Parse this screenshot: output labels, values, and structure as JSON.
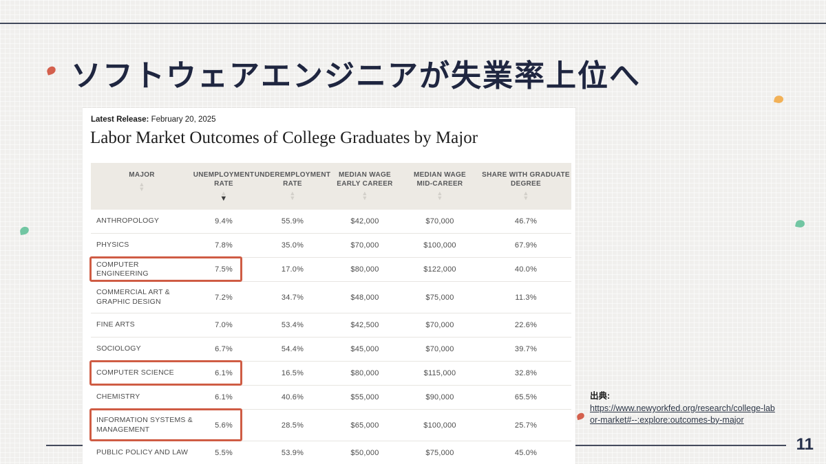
{
  "slide": {
    "title": "ソフトウェアエンジニアが失業率上位へ",
    "page_number": "11"
  },
  "report": {
    "release_label": "Latest Release:",
    "release_date": "February 20, 2025",
    "title": "Labor Market Outcomes of College Graduates by Major"
  },
  "table": {
    "columns": [
      {
        "label": "MAJOR",
        "sorted": "none"
      },
      {
        "label": "UNEMPLOYMENT\nRATE",
        "sorted": "desc"
      },
      {
        "label": "UNDEREMPLOYMENT\nRATE",
        "sorted": "none"
      },
      {
        "label": "MEDIAN WAGE\nEARLY CAREER",
        "sorted": "none"
      },
      {
        "label": "MEDIAN WAGE\nMID-CAREER",
        "sorted": "none"
      },
      {
        "label": "SHARE WITH GRADUATE\nDEGREE",
        "sorted": "none"
      }
    ],
    "rows": [
      {
        "major": "ANTHROPOLOGY",
        "values": [
          "9.4%",
          "55.9%",
          "$42,000",
          "$70,000",
          "46.7%"
        ],
        "highlighted": false
      },
      {
        "major": "PHYSICS",
        "values": [
          "7.8%",
          "35.0%",
          "$70,000",
          "$100,000",
          "67.9%"
        ],
        "highlighted": false
      },
      {
        "major": "COMPUTER ENGINEERING",
        "values": [
          "7.5%",
          "17.0%",
          "$80,000",
          "$122,000",
          "40.0%"
        ],
        "highlighted": true
      },
      {
        "major": "COMMERCIAL ART &\nGRAPHIC DESIGN",
        "values": [
          "7.2%",
          "34.7%",
          "$48,000",
          "$75,000",
          "11.3%"
        ],
        "highlighted": false
      },
      {
        "major": "FINE ARTS",
        "values": [
          "7.0%",
          "53.4%",
          "$42,500",
          "$70,000",
          "22.6%"
        ],
        "highlighted": false
      },
      {
        "major": "SOCIOLOGY",
        "values": [
          "6.7%",
          "54.4%",
          "$45,000",
          "$70,000",
          "39.7%"
        ],
        "highlighted": false
      },
      {
        "major": "COMPUTER SCIENCE",
        "values": [
          "6.1%",
          "16.5%",
          "$80,000",
          "$115,000",
          "32.8%"
        ],
        "highlighted": true
      },
      {
        "major": "CHEMISTRY",
        "values": [
          "6.1%",
          "40.6%",
          "$55,000",
          "$90,000",
          "65.5%"
        ],
        "highlighted": false
      },
      {
        "major": "INFORMATION SYSTEMS &\nMANAGEMENT",
        "values": [
          "5.6%",
          "28.5%",
          "$65,000",
          "$100,000",
          "25.7%"
        ],
        "highlighted": true
      },
      {
        "major": "PUBLIC POLICY AND LAW",
        "values": [
          "5.5%",
          "53.9%",
          "$50,000",
          "$75,000",
          "45.0%"
        ],
        "highlighted": false
      }
    ]
  },
  "source": {
    "label": "出典:",
    "url_line1": "https://www.newyorkfed.org/research/college-lab",
    "url_line2": "or-market#--:explore:outcomes-by-major"
  },
  "colors": {
    "highlight_box": "#cf5c44",
    "title_text": "#1f2640",
    "rule_line": "#434a5c",
    "leaf_red": "#d4604d",
    "leaf_yellow": "#f2b157",
    "leaf_teal": "#72c6a3"
  }
}
